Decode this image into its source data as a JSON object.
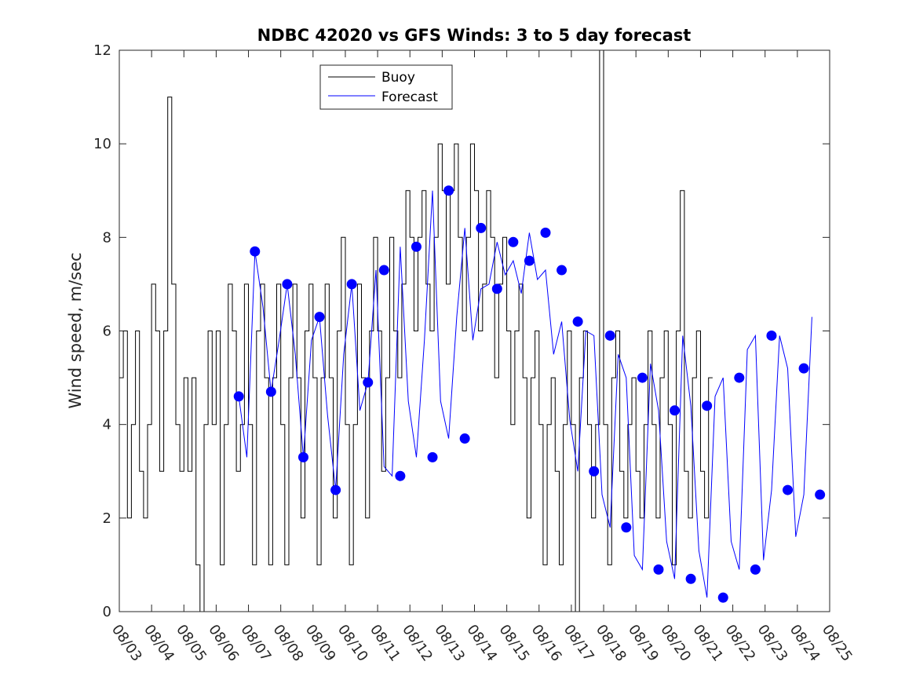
{
  "chart_data": {
    "type": "line",
    "title": "NDBC 42020 vs GFS Winds: 3 to 5 day forecast",
    "xlabel": "",
    "ylabel": "Wind speed, m/sec",
    "ylim": [
      0,
      12
    ],
    "yticks": [
      0,
      2,
      4,
      6,
      8,
      10,
      12
    ],
    "xlim_days": [
      0,
      22
    ],
    "xtick_labels": [
      "08/03",
      "08/04",
      "08/05",
      "08/06",
      "08/07",
      "08/08",
      "08/09",
      "08/10",
      "08/11",
      "08/12",
      "08/13",
      "08/14",
      "08/15",
      "08/16",
      "08/17",
      "08/18",
      "08/19",
      "08/20",
      "08/21",
      "08/22",
      "08/23",
      "08/24",
      "08/25"
    ],
    "legend": {
      "position": "top-left",
      "entries": [
        "Buoy",
        "Forecast"
      ]
    },
    "colors": {
      "buoy": "#000000",
      "forecast": "#0000ff",
      "markers": "#0000ff"
    },
    "series": [
      {
        "name": "Buoy",
        "type": "step",
        "sample_hours": 3,
        "values": [
          5,
          6,
          2,
          4,
          6,
          3,
          2,
          4,
          7,
          6,
          3,
          6,
          11,
          7,
          4,
          3,
          5,
          3,
          5,
          1,
          0,
          4,
          6,
          4,
          6,
          1,
          4,
          7,
          6,
          3,
          4,
          7,
          4,
          1,
          6,
          7,
          5,
          1,
          5,
          7,
          4,
          1,
          5,
          7,
          5,
          2,
          6,
          7,
          5,
          1,
          5,
          7,
          5,
          2,
          6,
          8,
          4,
          1,
          4,
          7,
          5,
          2,
          6,
          8,
          6,
          3,
          5,
          8,
          6,
          5,
          7,
          9,
          8,
          6,
          8,
          9,
          7,
          6,
          8,
          10,
          9,
          7,
          9,
          10,
          8,
          6,
          8,
          10,
          9,
          6,
          7,
          9,
          8,
          5,
          7,
          8,
          6,
          4,
          6,
          7,
          5,
          2,
          5,
          6,
          4,
          1,
          4,
          5,
          3,
          1,
          4,
          6,
          4,
          0,
          5,
          6,
          4,
          2,
          4,
          12,
          4,
          1,
          5,
          6,
          3,
          2,
          4,
          5,
          3,
          2,
          4,
          6,
          4,
          2,
          5,
          6,
          4,
          1,
          6,
          9,
          3,
          2,
          5,
          6,
          3,
          2,
          5
        ]
      },
      {
        "name": "Forecast",
        "type": "line",
        "sample_hours": 6,
        "values": [
          4.6,
          3.3,
          7.7,
          6.5,
          4.7,
          5.8,
          7.0,
          5.5,
          3.3,
          5.8,
          6.3,
          4.2,
          2.6,
          5.5,
          7.0,
          4.3,
          4.9,
          7.3,
          3.1,
          2.9,
          7.8,
          4.5,
          3.3,
          5.8,
          9.0,
          4.5,
          3.7,
          6.3,
          8.2,
          5.8,
          6.9,
          7.0,
          7.9,
          7.2,
          7.5,
          6.8,
          8.1,
          7.1,
          7.3,
          5.5,
          6.2,
          4.1,
          3.0,
          6.0,
          5.9,
          2.5,
          1.8,
          5.5,
          5.0,
          1.2,
          0.9,
          5.3,
          4.3,
          1.5,
          0.7,
          5.9,
          4.4,
          1.3,
          0.3,
          4.6,
          5.0,
          1.5,
          0.9,
          5.6,
          5.9,
          1.1,
          2.6,
          5.9,
          5.2,
          1.6,
          2.5,
          6.3
        ]
      }
    ],
    "markers": {
      "name": "Forecast daily points",
      "points": [
        {
          "day": 3.7,
          "value": 4.6
        },
        {
          "day": 4.2,
          "value": 7.7
        },
        {
          "day": 4.7,
          "value": 4.7
        },
        {
          "day": 5.2,
          "value": 7.0
        },
        {
          "day": 5.7,
          "value": 3.3
        },
        {
          "day": 6.2,
          "value": 6.3
        },
        {
          "day": 6.7,
          "value": 2.6
        },
        {
          "day": 7.2,
          "value": 7.0
        },
        {
          "day": 7.7,
          "value": 4.9
        },
        {
          "day": 8.2,
          "value": 7.3
        },
        {
          "day": 8.7,
          "value": 2.9
        },
        {
          "day": 9.2,
          "value": 7.8
        },
        {
          "day": 9.7,
          "value": 3.3
        },
        {
          "day": 10.2,
          "value": 9.0
        },
        {
          "day": 10.7,
          "value": 3.7
        },
        {
          "day": 11.2,
          "value": 8.2
        },
        {
          "day": 11.7,
          "value": 6.9
        },
        {
          "day": 12.2,
          "value": 7.9
        },
        {
          "day": 12.7,
          "value": 7.5
        },
        {
          "day": 13.2,
          "value": 8.1
        },
        {
          "day": 13.7,
          "value": 7.3
        },
        {
          "day": 14.2,
          "value": 6.2
        },
        {
          "day": 14.7,
          "value": 3.0
        },
        {
          "day": 15.2,
          "value": 5.9
        },
        {
          "day": 15.7,
          "value": 1.8
        },
        {
          "day": 16.2,
          "value": 5.0
        },
        {
          "day": 16.7,
          "value": 0.9
        },
        {
          "day": 17.2,
          "value": 4.3
        },
        {
          "day": 17.7,
          "value": 0.7
        },
        {
          "day": 18.2,
          "value": 4.4
        },
        {
          "day": 18.7,
          "value": 0.3
        },
        {
          "day": 19.2,
          "value": 5.0
        },
        {
          "day": 19.7,
          "value": 0.9
        },
        {
          "day": 20.2,
          "value": 5.9
        },
        {
          "day": 20.7,
          "value": 2.6
        },
        {
          "day": 21.2,
          "value": 5.2
        },
        {
          "day": 21.7,
          "value": 2.5
        }
      ]
    }
  }
}
